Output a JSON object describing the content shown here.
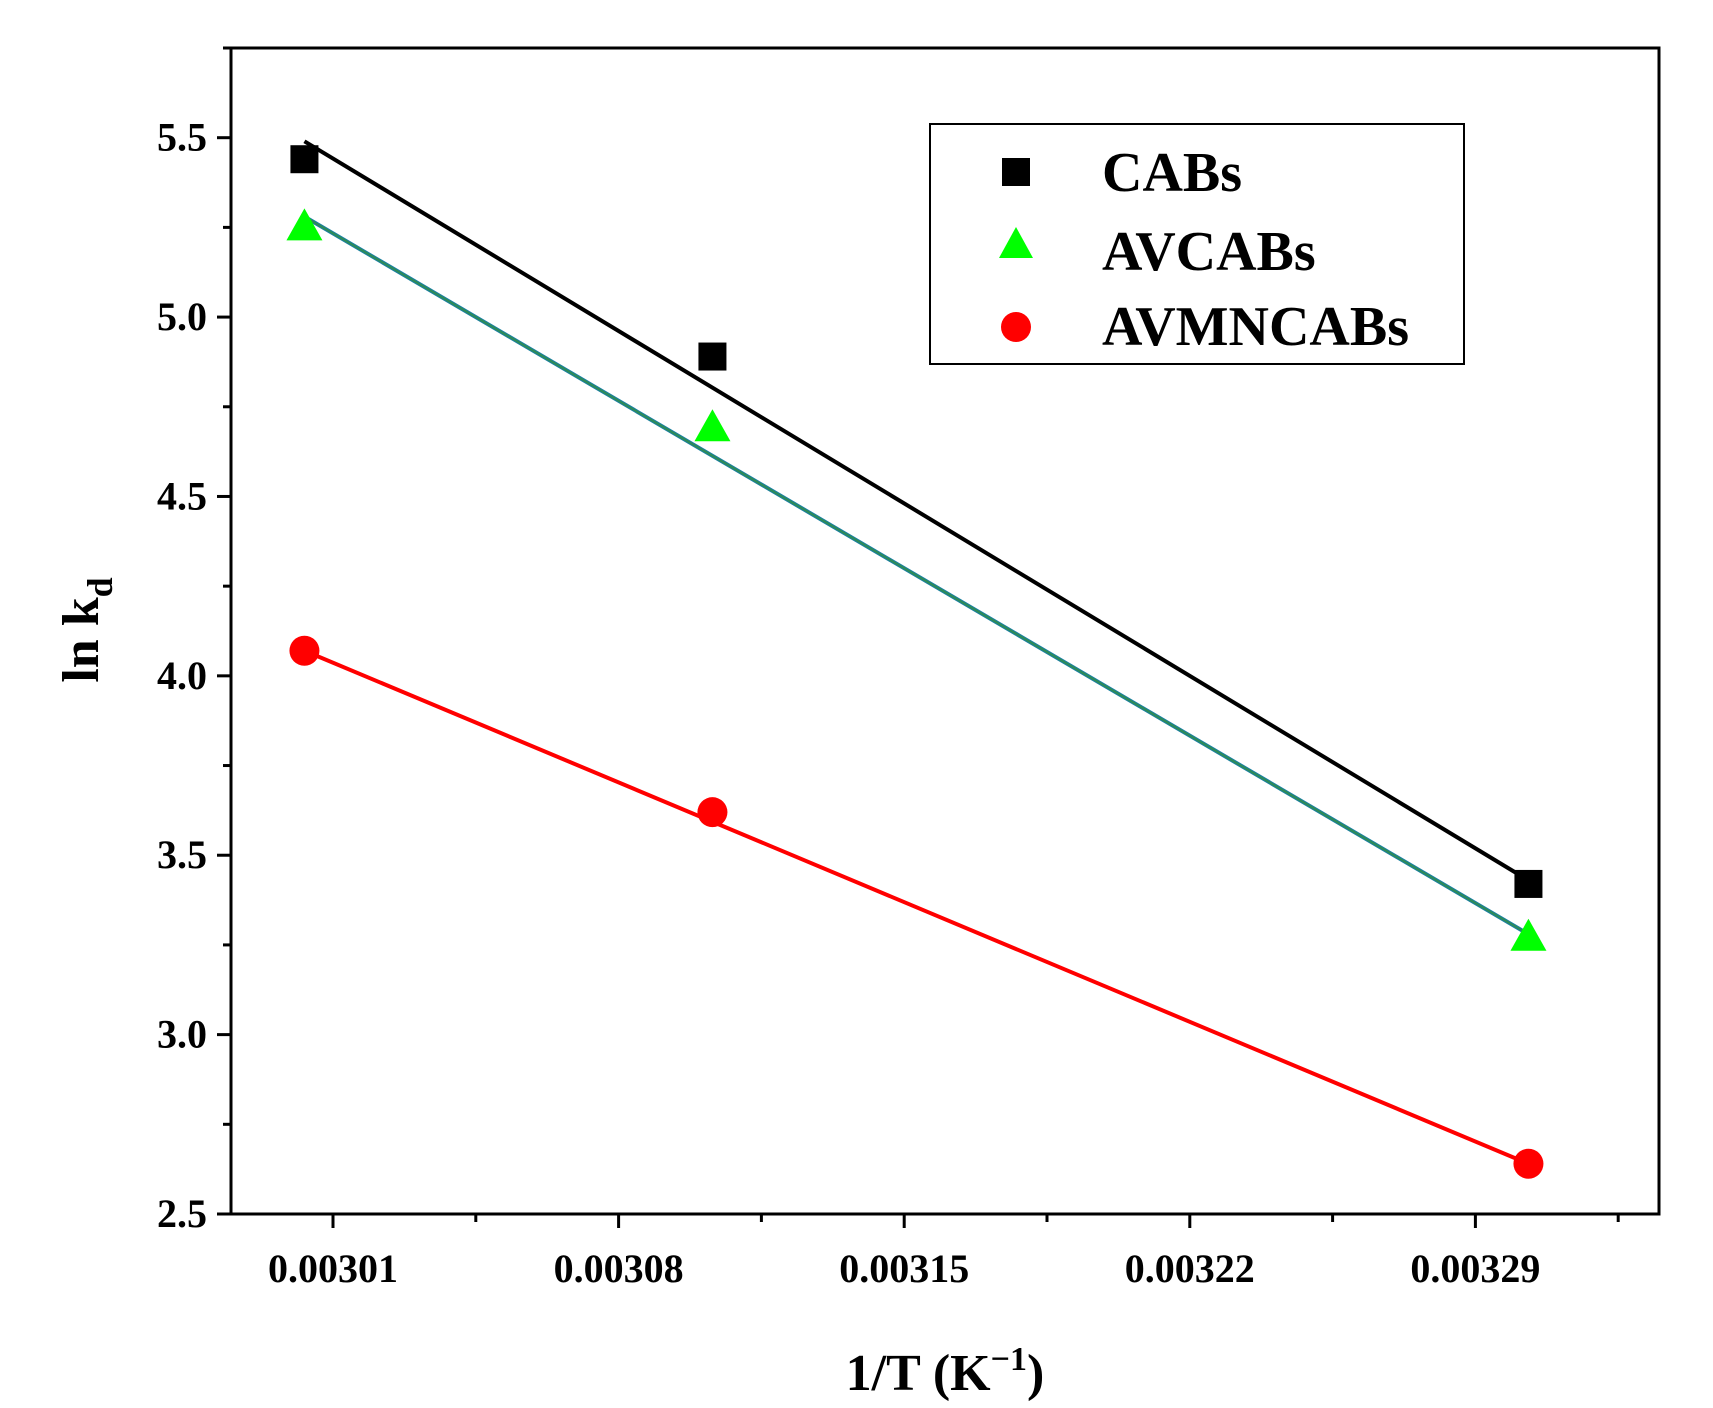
{
  "chart_data": {
    "type": "scatter",
    "title": "",
    "xlabel": {
      "main": "1/T (K",
      "sup": "−1",
      "close": ")"
    },
    "ylabel": {
      "main": "ln k",
      "sub": "d"
    },
    "xlim": [
      0.002985,
      0.003335
    ],
    "ylim": [
      2.5,
      5.75
    ],
    "x_ticks": [
      0.00301,
      0.00308,
      0.00315,
      0.00322,
      0.00329
    ],
    "x_tick_labels": [
      "0.00301",
      "0.00308",
      "0.00315",
      "0.00322",
      "0.00329"
    ],
    "x_minor_ticks": [
      0.002975,
      0.003045,
      0.003115,
      0.003185,
      0.003255,
      0.003325
    ],
    "y_ticks": [
      2.5,
      3.0,
      3.5,
      4.0,
      4.5,
      5.0,
      5.5
    ],
    "y_tick_labels": [
      "2.5",
      "3.0",
      "3.5",
      "4.0",
      "4.5",
      "5.0",
      "5.5"
    ],
    "y_minor_ticks": [
      2.75,
      3.25,
      3.75,
      4.25,
      4.75,
      5.25,
      5.75
    ],
    "legend_position": "top-right",
    "series": [
      {
        "name": "CABs",
        "marker": "square",
        "color": "#000000",
        "line_color": "#000000",
        "x": [
          0.003003,
          0.003103,
          0.003303
        ],
        "y": [
          5.44,
          4.89,
          3.42
        ],
        "fit": {
          "x": [
            0.003003,
            0.003303
          ],
          "y": [
            5.49,
            3.43
          ]
        }
      },
      {
        "name": "AVCABs",
        "marker": "triangle",
        "color": "#00ff00",
        "line_color": "#2e8b57",
        "x": [
          0.003003,
          0.003103,
          0.003303
        ],
        "y": [
          5.25,
          4.69,
          3.27
        ],
        "fit": {
          "x": [
            0.003003,
            0.003303
          ],
          "y": [
            5.28,
            3.28
          ]
        }
      },
      {
        "name": "AVMNCABs",
        "marker": "circle",
        "color": "#ff0000",
        "line_color": "#ff0000",
        "x": [
          0.003003,
          0.003103,
          0.003303
        ],
        "y": [
          4.07,
          3.62,
          2.64
        ],
        "fit": {
          "x": [
            0.003003,
            0.003303
          ],
          "y": [
            4.07,
            2.64
          ]
        }
      }
    ]
  }
}
